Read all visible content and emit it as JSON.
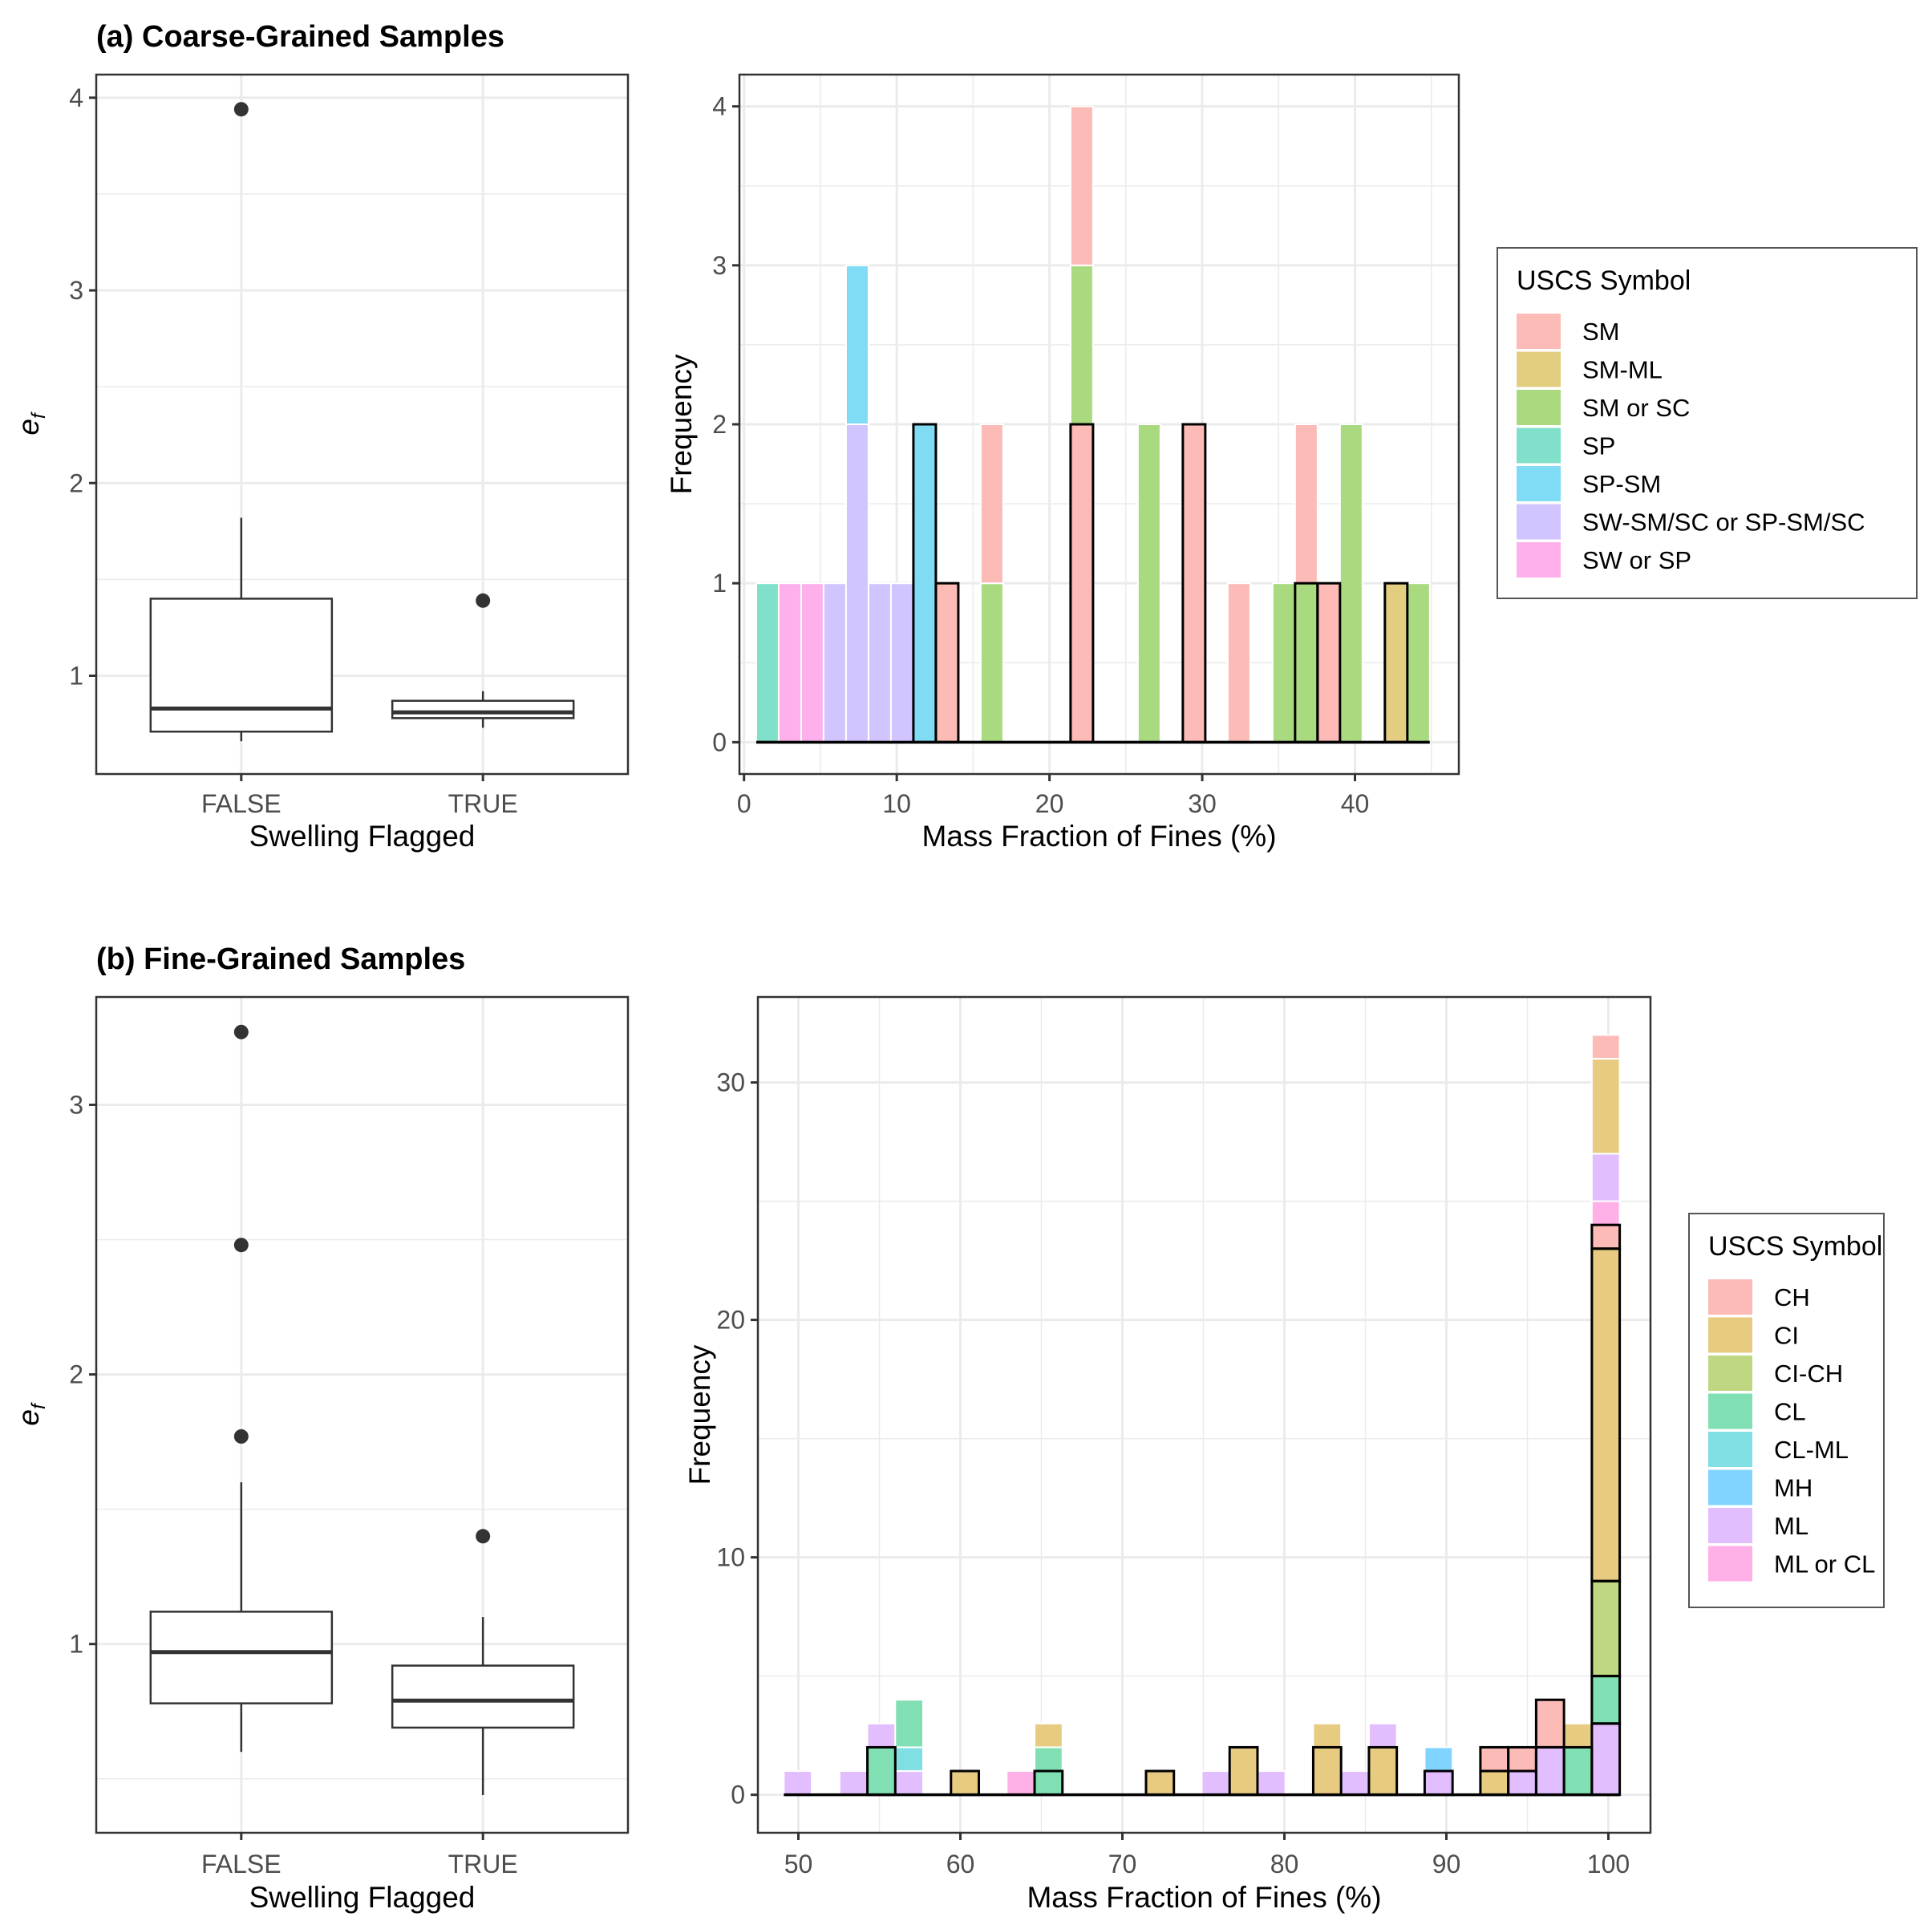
{
  "chart_data": [
    {
      "id": "a-box",
      "type": "boxplot",
      "panel_title": "(a) Coarse-Grained Samples",
      "xlabel": "Swelling Flagged",
      "ylabel": "e_f",
      "ylabel_main": "e",
      "ylabel_sub": "f",
      "ylim": [
        0.49,
        4.12
      ],
      "yticks": [
        1,
        2,
        3,
        4
      ],
      "yminor": [
        1.5,
        2.5,
        3.5
      ],
      "grid": true,
      "categories": [
        "FALSE",
        "TRUE"
      ],
      "boxes": [
        {
          "category": "FALSE",
          "whisker_low": 0.66,
          "q1": 0.71,
          "median": 0.83,
          "q3": 1.4,
          "whisker_high": 1.82,
          "outliers": [
            3.94
          ]
        },
        {
          "category": "TRUE",
          "whisker_low": 0.73,
          "q1": 0.78,
          "median": 0.81,
          "q3": 0.87,
          "whisker_high": 0.92,
          "outliers": [
            1.39
          ]
        }
      ]
    },
    {
      "id": "a-hist",
      "type": "bar",
      "subtype": "stacked-histogram",
      "xlabel": "Mass Fraction of Fines (%)",
      "ylabel": "Frequency",
      "xlim": [
        -0.3,
        46.8
      ],
      "ylim": [
        -0.2,
        4.2
      ],
      "xticks": [
        0,
        10,
        20,
        30,
        40
      ],
      "yticks": [
        0,
        1,
        2,
        3,
        4
      ],
      "grid": true,
      "bin_start": 0.8,
      "bin_width": 1.47,
      "bin_count": 30,
      "note": "segments with outlined=true are drawn with black border (Swelling Flagged = TRUE); unoutlined segments are stacked fill (FALSE)",
      "legend": {
        "title": "USCS Symbol",
        "placement": "right",
        "items": [
          {
            "label": "SM",
            "color": "#F8766D"
          },
          {
            "label": "SM-ML",
            "color": "#C49A00"
          },
          {
            "label": "SM or SC",
            "color": "#53B400"
          },
          {
            "label": "SP",
            "color": "#00C094"
          },
          {
            "label": "SP-SM",
            "color": "#00B6EB"
          },
          {
            "label": "SW-SM/SC or SP-SM/SC",
            "color": "#A58AFF"
          },
          {
            "label": "SW or SP",
            "color": "#FB61D7"
          }
        ]
      },
      "bins": [
        {
          "bin": 0,
          "segments": [
            {
              "class": "SP",
              "count": 1,
              "outlined": false
            }
          ]
        },
        {
          "bin": 1,
          "segments": [
            {
              "class": "SW or SP",
              "count": 1,
              "outlined": false
            }
          ]
        },
        {
          "bin": 2,
          "segments": [
            {
              "class": "SW or SP",
              "count": 1,
              "outlined": false
            }
          ]
        },
        {
          "bin": 3,
          "segments": [
            {
              "class": "SW-SM/SC or SP-SM/SC",
              "count": 1,
              "outlined": false
            }
          ]
        },
        {
          "bin": 4,
          "segments": [
            {
              "class": "SW-SM/SC or SP-SM/SC",
              "count": 2,
              "outlined": false
            },
            {
              "class": "SP-SM",
              "count": 1,
              "outlined": false
            }
          ]
        },
        {
          "bin": 5,
          "segments": [
            {
              "class": "SW-SM/SC or SP-SM/SC",
              "count": 1,
              "outlined": false
            }
          ]
        },
        {
          "bin": 6,
          "segments": [
            {
              "class": "SW-SM/SC or SP-SM/SC",
              "count": 1,
              "outlined": false
            }
          ]
        },
        {
          "bin": 7,
          "segments": [
            {
              "class": "SP-SM",
              "count": 2,
              "outlined": true
            }
          ]
        },
        {
          "bin": 8,
          "segments": [
            {
              "class": "SM",
              "count": 1,
              "outlined": true
            }
          ]
        },
        {
          "bin": 10,
          "segments": [
            {
              "class": "SM or SC",
              "count": 1,
              "outlined": false
            },
            {
              "class": "SM",
              "count": 1,
              "outlined": false
            }
          ]
        },
        {
          "bin": 14,
          "segments": [
            {
              "class": "SM",
              "count": 2,
              "outlined": true
            },
            {
              "class": "SM or SC",
              "count": 1,
              "outlined": false
            },
            {
              "class": "SM",
              "count": 1,
              "outlined": false
            }
          ]
        },
        {
          "bin": 17,
          "segments": [
            {
              "class": "SM or SC",
              "count": 2,
              "outlined": false
            }
          ]
        },
        {
          "bin": 19,
          "segments": [
            {
              "class": "SM",
              "count": 2,
              "outlined": true
            }
          ]
        },
        {
          "bin": 21,
          "segments": [
            {
              "class": "SM",
              "count": 1,
              "outlined": false
            }
          ]
        },
        {
          "bin": 23,
          "segments": [
            {
              "class": "SM or SC",
              "count": 1,
              "outlined": false
            }
          ]
        },
        {
          "bin": 24,
          "segments": [
            {
              "class": "SM or SC",
              "count": 1,
              "outlined": true
            },
            {
              "class": "SM",
              "count": 1,
              "outlined": false
            }
          ]
        },
        {
          "bin": 25,
          "segments": [
            {
              "class": "SM",
              "count": 1,
              "outlined": true
            }
          ]
        },
        {
          "bin": 26,
          "segments": [
            {
              "class": "SM or SC",
              "count": 2,
              "outlined": false
            }
          ]
        },
        {
          "bin": 28,
          "segments": [
            {
              "class": "SM-ML",
              "count": 1,
              "outlined": true
            }
          ]
        },
        {
          "bin": 29,
          "segments": [
            {
              "class": "SM or SC",
              "count": 1,
              "outlined": false
            }
          ]
        }
      ]
    },
    {
      "id": "b-box",
      "type": "boxplot",
      "panel_title": "(b) Fine-Grained Samples",
      "xlabel": "Swelling Flagged",
      "ylabel": "e_f",
      "ylabel_main": "e",
      "ylabel_sub": "f",
      "ylim": [
        0.3,
        3.4
      ],
      "yticks": [
        1,
        2,
        3
      ],
      "yminor": [
        0.5,
        1.5,
        2.5
      ],
      "grid": true,
      "categories": [
        "FALSE",
        "TRUE"
      ],
      "boxes": [
        {
          "category": "FALSE",
          "whisker_low": 0.6,
          "q1": 0.78,
          "median": 0.97,
          "q3": 1.12,
          "whisker_high": 1.6,
          "outliers": [
            1.77,
            2.48,
            3.27
          ]
        },
        {
          "category": "TRUE",
          "whisker_low": 0.44,
          "q1": 0.69,
          "median": 0.79,
          "q3": 0.92,
          "whisker_high": 1.1,
          "outliers": [
            1.4
          ]
        }
      ]
    },
    {
      "id": "b-hist",
      "type": "bar",
      "subtype": "stacked-histogram",
      "xlabel": "Mass Fraction of Fines (%)",
      "ylabel": "Frequency",
      "xlim": [
        47.5,
        102.6
      ],
      "ylim": [
        -1.6,
        33.6
      ],
      "xticks": [
        50,
        60,
        70,
        80,
        90,
        100
      ],
      "yticks": [
        0,
        10,
        20,
        30
      ],
      "grid": true,
      "bin_start": 49.1,
      "bin_width": 1.72,
      "bin_count": 30,
      "note": "segments with outlined=true are drawn with black border (Swelling Flagged = TRUE); unoutlined segments are stacked fill (FALSE)",
      "legend": {
        "title": "USCS Symbol",
        "placement": "right",
        "items": [
          {
            "label": "CH",
            "color": "#F8766D"
          },
          {
            "label": "CI",
            "color": "#CD9600"
          },
          {
            "label": "CI-CH",
            "color": "#7CAE00"
          },
          {
            "label": "CL",
            "color": "#00BE67"
          },
          {
            "label": "CL-ML",
            "color": "#00BFC4"
          },
          {
            "label": "MH",
            "color": "#00A9FF"
          },
          {
            "label": "ML",
            "color": "#C77CFF"
          },
          {
            "label": "ML or CL",
            "color": "#FF61CC"
          }
        ]
      },
      "bins": [
        {
          "bin": 0,
          "segments": [
            {
              "class": "ML",
              "count": 1,
              "outlined": false
            }
          ]
        },
        {
          "bin": 2,
          "segments": [
            {
              "class": "ML",
              "count": 1,
              "outlined": false
            }
          ]
        },
        {
          "bin": 3,
          "segments": [
            {
              "class": "CL",
              "count": 2,
              "outlined": true
            },
            {
              "class": "ML",
              "count": 1,
              "outlined": false
            }
          ]
        },
        {
          "bin": 4,
          "segments": [
            {
              "class": "ML",
              "count": 1,
              "outlined": false
            },
            {
              "class": "CL-ML",
              "count": 1,
              "outlined": false
            },
            {
              "class": "CL",
              "count": 2,
              "outlined": false
            }
          ]
        },
        {
          "bin": 6,
          "segments": [
            {
              "class": "CI",
              "count": 1,
              "outlined": true
            }
          ]
        },
        {
          "bin": 8,
          "segments": [
            {
              "class": "ML or CL",
              "count": 1,
              "outlined": false
            }
          ]
        },
        {
          "bin": 9,
          "segments": [
            {
              "class": "CL",
              "count": 1,
              "outlined": true
            },
            {
              "class": "CL",
              "count": 1,
              "outlined": false
            },
            {
              "class": "CI",
              "count": 1,
              "outlined": false
            }
          ]
        },
        {
          "bin": 13,
          "segments": [
            {
              "class": "CI",
              "count": 1,
              "outlined": true
            }
          ]
        },
        {
          "bin": 15,
          "segments": [
            {
              "class": "ML",
              "count": 1,
              "outlined": false
            }
          ]
        },
        {
          "bin": 16,
          "segments": [
            {
              "class": "CI",
              "count": 2,
              "outlined": true
            }
          ]
        },
        {
          "bin": 17,
          "segments": [
            {
              "class": "ML",
              "count": 1,
              "outlined": false
            }
          ]
        },
        {
          "bin": 19,
          "segments": [
            {
              "class": "CI",
              "count": 2,
              "outlined": true
            },
            {
              "class": "CI",
              "count": 1,
              "outlined": false
            }
          ]
        },
        {
          "bin": 20,
          "segments": [
            {
              "class": "ML",
              "count": 1,
              "outlined": false
            }
          ]
        },
        {
          "bin": 21,
          "segments": [
            {
              "class": "CI",
              "count": 2,
              "outlined": true
            },
            {
              "class": "ML",
              "count": 1,
              "outlined": false
            }
          ]
        },
        {
          "bin": 23,
          "segments": [
            {
              "class": "ML",
              "count": 1,
              "outlined": true
            },
            {
              "class": "MH",
              "count": 1,
              "outlined": false
            }
          ]
        },
        {
          "bin": 25,
          "segments": [
            {
              "class": "CI",
              "count": 1,
              "outlined": true
            },
            {
              "class": "CH",
              "count": 1,
              "outlined": true
            }
          ]
        },
        {
          "bin": 26,
          "segments": [
            {
              "class": "ML",
              "count": 1,
              "outlined": true
            },
            {
              "class": "CH",
              "count": 1,
              "outlined": true
            }
          ]
        },
        {
          "bin": 27,
          "segments": [
            {
              "class": "ML",
              "count": 2,
              "outlined": true
            },
            {
              "class": "CH",
              "count": 2,
              "outlined": true
            }
          ]
        },
        {
          "bin": 28,
          "segments": [
            {
              "class": "CL",
              "count": 2,
              "outlined": true
            },
            {
              "class": "CI",
              "count": 1,
              "outlined": false
            }
          ]
        },
        {
          "bin": 29,
          "segments": [
            {
              "class": "ML",
              "count": 3,
              "outlined": true
            },
            {
              "class": "CL",
              "count": 2,
              "outlined": true
            },
            {
              "class": "CI-CH",
              "count": 4,
              "outlined": true
            },
            {
              "class": "CI",
              "count": 14,
              "outlined": true
            },
            {
              "class": "CH",
              "count": 1,
              "outlined": true
            },
            {
              "class": "ML or CL",
              "count": 1,
              "outlined": false
            },
            {
              "class": "ML",
              "count": 2,
              "outlined": false
            },
            {
              "class": "CI",
              "count": 4,
              "outlined": false
            },
            {
              "class": "CH",
              "count": 1,
              "outlined": false
            }
          ]
        }
      ]
    }
  ]
}
